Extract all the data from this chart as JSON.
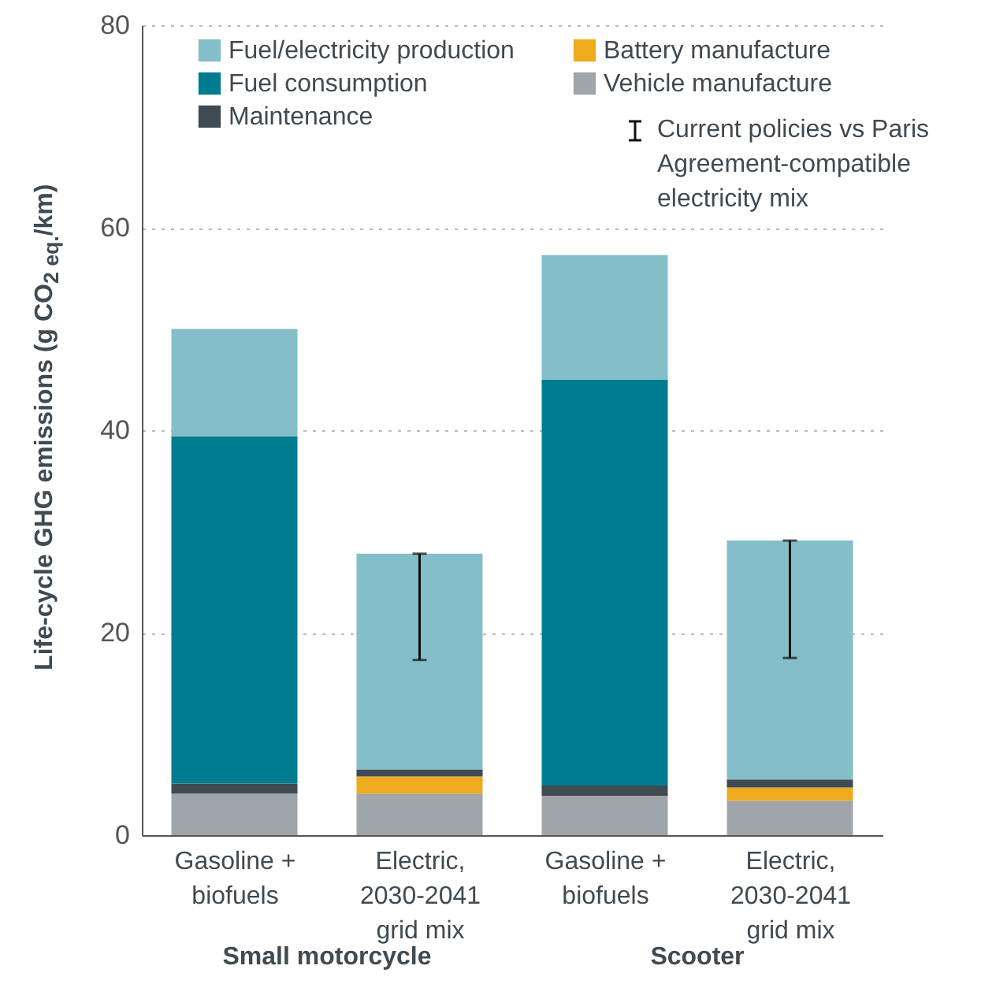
{
  "chart_data": {
    "type": "bar",
    "stacked": true,
    "categories": [
      "Gasoline + biofuels",
      "Electric, 2030-2041 grid mix",
      "Gasoline + biofuels",
      "Electric, 2030-2041 grid mix"
    ],
    "ylabel": "Life-cycle GHG emissions (g CO$_{2 eq.}$/km)",
    "series": [
      {
        "name": "Vehicle manufacture",
        "color": "#a0a5a9",
        "values": [
          4.1,
          4.1,
          3.9,
          3.4
        ]
      },
      {
        "name": "Battery manufacture",
        "color": "#eeab1e",
        "values": [
          null,
          1.7,
          null,
          1.3
        ]
      },
      {
        "name": "Maintenance",
        "color": "#3f4a52",
        "values": [
          1.0,
          0.7,
          1.0,
          0.8
        ]
      },
      {
        "name": "Fuel consumption",
        "color": "#007c91",
        "values": [
          34.3,
          null,
          40.1,
          null
        ]
      },
      {
        "name": "Fuel/electricity production",
        "color": "#84bec9",
        "values": [
          10.6,
          21.3,
          12.3,
          23.6
        ],
        "errors": [
          null,
          [
            17.3,
            27.8
          ],
          null,
          [
            17.5,
            29.1
          ]
        ]
      }
    ],
    "ylim": [
      0,
      80
    ],
    "yticks": [
      0,
      20,
      40,
      60,
      80
    ],
    "grid": "y",
    "legend": "top",
    "annotations": [
      "Current policies vs Paris Agreement-compatible electricity mix",
      "Small motorcycle",
      "Scooter"
    ]
  }
}
